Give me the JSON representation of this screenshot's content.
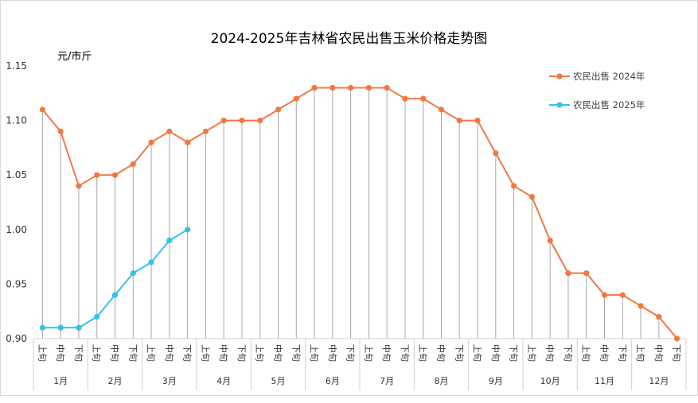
{
  "chart_data": {
    "type": "line",
    "title": "2024-2025年吉林省农民出售玉米价格走势图",
    "ylabel": "元/市斤",
    "xlabel": "",
    "ylim": [
      0.9,
      1.15
    ],
    "yticks": [
      "0.90",
      "0.95",
      "1.00",
      "1.05",
      "1.10",
      "1.15"
    ],
    "grid": false,
    "drop_lines": true,
    "legend_position": "top-right",
    "groups": [
      "1月",
      "2月",
      "3月",
      "4月",
      "5月",
      "6月",
      "7月",
      "8月",
      "9月",
      "10月",
      "11月",
      "12月"
    ],
    "subcategories": [
      "上旬",
      "中旬",
      "下旬"
    ],
    "series": [
      {
        "name": "农民出售 2024年",
        "color": "#f07844",
        "values": [
          1.11,
          1.09,
          1.04,
          1.05,
          1.05,
          1.06,
          1.08,
          1.09,
          1.08,
          1.09,
          1.1,
          1.1,
          1.1,
          1.11,
          1.12,
          1.13,
          1.13,
          1.13,
          1.13,
          1.13,
          1.12,
          1.12,
          1.11,
          1.1,
          1.1,
          1.07,
          1.04,
          1.03,
          0.99,
          0.96,
          0.96,
          0.94,
          0.94,
          0.93,
          0.92,
          0.9
        ]
      },
      {
        "name": "农民出售 2025年",
        "color": "#33c2ea",
        "values": [
          0.91,
          0.91,
          0.91,
          0.92,
          0.94,
          0.96,
          0.97,
          0.99,
          1.0
        ]
      }
    ]
  }
}
